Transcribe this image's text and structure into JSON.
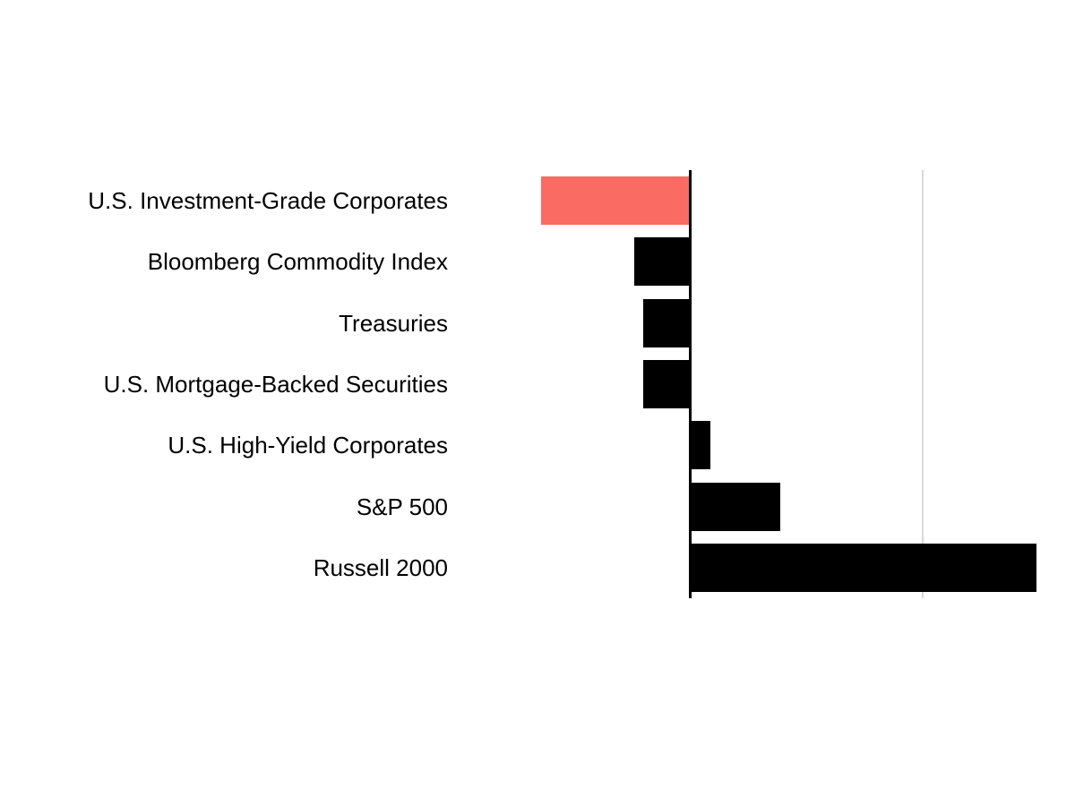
{
  "chart_data": {
    "type": "bar",
    "orientation": "horizontal",
    "title": "",
    "categories": [
      "U.S. Investment-Grade Corporates",
      "Bloomberg Commodity Index",
      "Treasuries",
      "U.S. Mortgage-Backed Securities",
      "U.S. High-Yield Corporates",
      "S&P 500",
      "Russell 2000"
    ],
    "values": [
      -3.2,
      -1.2,
      -1.0,
      -1.0,
      0.4,
      1.9,
      7.4
    ],
    "unit": "percent (estimated, no tick labels shown)",
    "baseline": 0,
    "xlim": [
      -3.5,
      7.5
    ],
    "gridlines": [
      5
    ],
    "legend": "none",
    "grid_on": true
  },
  "colors": {
    "negative_highlight_bar": "#f96b63",
    "default_bar": "#000000",
    "axis_line": "#000000",
    "gridline": "#d8d8d8",
    "background": "#ffffff",
    "label_text": "#000000"
  },
  "bar_colors": [
    "#f96b63",
    "#000000",
    "#000000",
    "#000000",
    "#000000",
    "#000000",
    "#000000"
  ]
}
